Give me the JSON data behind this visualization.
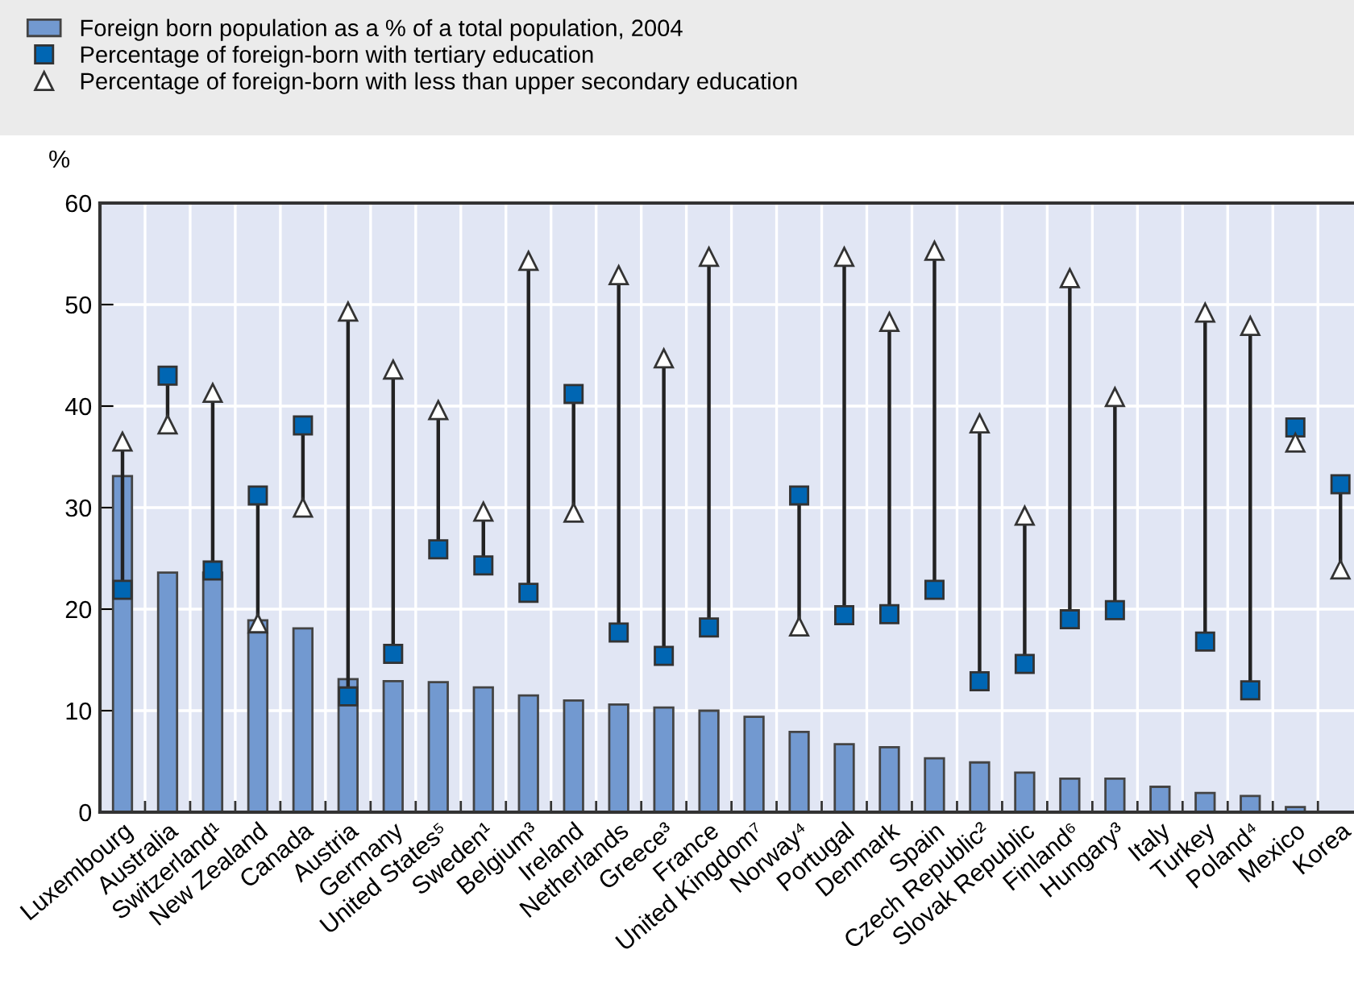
{
  "chart_data": {
    "type": "bar",
    "ylabel": "%",
    "categories": [
      "Luxembourg",
      "Australia",
      "Switzerland¹",
      "New Zealand",
      "Canada",
      "Austria",
      "Germany",
      "United States⁵",
      "Sweden¹",
      "Belgium³",
      "Ireland",
      "Netherlands",
      "Greece³",
      "France",
      "United Kingdom⁷",
      "Norway⁴",
      "Portugal",
      "Denmark",
      "Spain",
      "Czech Republic²",
      "Slovak Republic",
      "Finland⁶",
      "Hungary³",
      "Italy",
      "Turkey",
      "Poland⁴",
      "Mexico",
      "Korea"
    ],
    "series": [
      {
        "name": "Foreign born population as a % of a total population, 2004",
        "color": "#7299d0",
        "values": [
          33.1,
          23.6,
          23.6,
          18.9,
          18.1,
          13.1,
          12.9,
          12.8,
          12.3,
          11.5,
          11.0,
          10.6,
          10.3,
          10.0,
          9.4,
          7.9,
          6.7,
          6.4,
          5.3,
          4.9,
          3.9,
          3.3,
          3.3,
          2.5,
          1.9,
          1.6,
          0.5,
          null
        ]
      },
      {
        "name": "Percentage of foreign-born with tertiary education",
        "type": "scatter",
        "marker": "square",
        "color": "#0066b3",
        "values": [
          21.9,
          43.0,
          23.8,
          31.2,
          38.1,
          11.4,
          15.6,
          25.9,
          24.3,
          21.6,
          41.2,
          17.7,
          15.4,
          18.2,
          null,
          31.2,
          19.4,
          19.5,
          21.9,
          12.9,
          14.6,
          19.0,
          19.9,
          null,
          16.8,
          12.0,
          37.9,
          32.3
        ]
      },
      {
        "name": "Percentage of foreign-born with less than upper secondary education",
        "type": "scatter",
        "marker": "triangle",
        "color": "#ffffff",
        "values": [
          36.5,
          38.2,
          41.3,
          18.6,
          30.0,
          49.3,
          43.6,
          39.6,
          29.6,
          54.3,
          29.5,
          52.9,
          44.7,
          54.7,
          null,
          18.3,
          54.7,
          48.3,
          55.3,
          38.3,
          29.2,
          52.6,
          40.9,
          null,
          49.2,
          47.9,
          36.4,
          23.9
        ]
      }
    ],
    "ylim": [
      0,
      60
    ],
    "yticks": [
      0,
      10,
      20,
      30,
      40,
      50,
      60
    ],
    "grid": true,
    "legend": "top left"
  }
}
